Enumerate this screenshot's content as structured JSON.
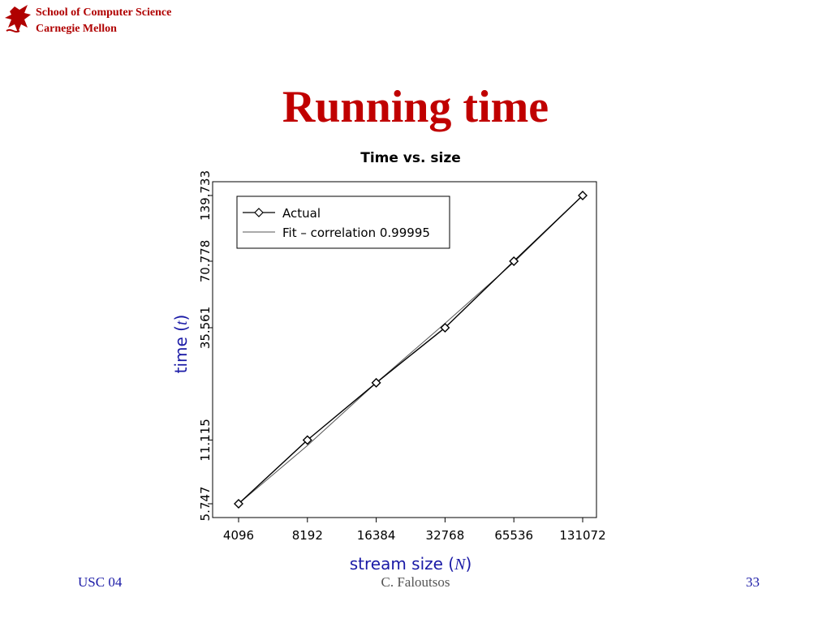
{
  "header": {
    "line1": "School of Computer Science",
    "line2": "Carnegie Mellon",
    "logo_icon": "griffin-logo-icon",
    "color": "#b00000"
  },
  "slide": {
    "title": "Running time",
    "title_color": "#c00000"
  },
  "chart_data": {
    "type": "line",
    "title": "Time vs. size",
    "xlabel_prefix": "stream size (",
    "xlabel_var": "N",
    "xlabel_suffix": ")",
    "ylabel_prefix": "time (",
    "ylabel_var": "t",
    "ylabel_suffix": ")",
    "axis_label_color": "#1a1aa6",
    "x_scale": "log2",
    "y_scale": "log",
    "x": [
      4096,
      8192,
      16384,
      32768,
      65536,
      131072
    ],
    "x_tick_labels": [
      "4096",
      "8192",
      "16384",
      "32768",
      "65536",
      "131072"
    ],
    "y_ticks": [
      5.747,
      11.115,
      35.561,
      70.778,
      139.733
    ],
    "y_tick_labels": [
      "5.747",
      "11.115",
      "35.561",
      "70.778",
      "139.733"
    ],
    "series": [
      {
        "name": "Actual",
        "style": "line-with-diamond-markers",
        "values": [
          5.747,
          11.115,
          20.1,
          35.561,
          70.778,
          139.733
        ]
      },
      {
        "name": "Fit – correlation 0.99995",
        "style": "line",
        "values": [
          5.747,
          10.5,
          20.1,
          37.2,
          70.0,
          139.733
        ]
      }
    ],
    "legend_position": "top-left",
    "grid": false
  },
  "footer": {
    "left": "USC 04",
    "center": "C. Faloutsos",
    "right": "33"
  }
}
